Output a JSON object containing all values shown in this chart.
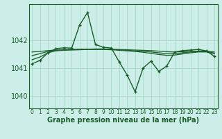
{
  "title": "Graphe pression niveau de la mer (hPa)",
  "background_color": "#cceee8",
  "grid_color": "#aaddcc",
  "line_color": "#1a5c28",
  "x_ticks": [
    0,
    1,
    2,
    3,
    4,
    5,
    6,
    7,
    8,
    9,
    10,
    11,
    12,
    13,
    14,
    15,
    16,
    17,
    18,
    19,
    20,
    21,
    22,
    23
  ],
  "y_ticks": [
    1040,
    1041,
    1042
  ],
  "ylim": [
    1039.55,
    1043.3
  ],
  "xlim": [
    -0.4,
    23.4
  ],
  "series_main": [
    1041.15,
    1041.28,
    1041.55,
    1041.7,
    1041.73,
    1041.72,
    1042.55,
    1043.0,
    1041.85,
    1041.75,
    1041.72,
    1041.22,
    1040.75,
    1040.15,
    1041.0,
    1041.25,
    1040.88,
    1041.08,
    1041.58,
    1041.63,
    1041.65,
    1041.67,
    1041.62,
    1041.42
  ],
  "series_flat1": [
    1041.58,
    1041.6,
    1041.63,
    1041.65,
    1041.66,
    1041.67,
    1041.67,
    1041.68,
    1041.68,
    1041.68,
    1041.68,
    1041.67,
    1041.66,
    1041.65,
    1041.64,
    1041.63,
    1041.61,
    1041.59,
    1041.58,
    1041.59,
    1041.6,
    1041.61,
    1041.61,
    1041.58
  ],
  "series_flat2": [
    1041.45,
    1041.52,
    1041.6,
    1041.64,
    1041.66,
    1041.67,
    1041.68,
    1041.68,
    1041.69,
    1041.69,
    1041.68,
    1041.66,
    1041.64,
    1041.62,
    1041.6,
    1041.58,
    1041.55,
    1041.52,
    1041.52,
    1041.55,
    1041.58,
    1041.6,
    1041.6,
    1041.54
  ],
  "series_flat3": [
    1041.3,
    1041.4,
    1041.55,
    1041.62,
    1041.64,
    1041.65,
    1041.66,
    1041.67,
    1041.67,
    1041.67,
    1041.66,
    1041.64,
    1041.62,
    1041.6,
    1041.57,
    1041.53,
    1041.49,
    1041.46,
    1041.47,
    1041.51,
    1041.55,
    1041.58,
    1041.58,
    1041.52
  ]
}
